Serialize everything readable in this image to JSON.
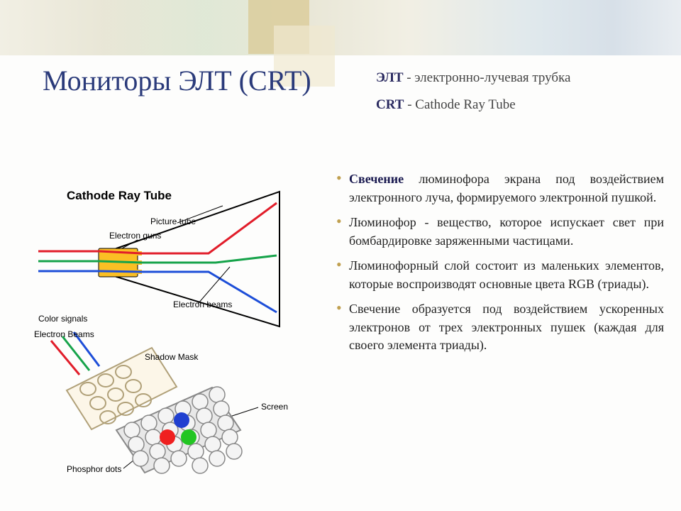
{
  "title": {
    "text": "Мониторы ЭЛТ (CRT)",
    "color": "#2a3a7a",
    "fontsize": 40
  },
  "definitions": {
    "elt_label": "ЭЛТ",
    "elt_text": " - электронно-лучевая трубка",
    "crt_label": "CRT",
    "crt_text": " - Cathode Ray Tube",
    "label_color": "#2a2a60",
    "text_color": "#444"
  },
  "bullets": {
    "items": [
      "<b>Свечение</b> люминофора экрана под воздействием электронного луча, формируемого электронной пушкой.",
      "Люминофор - вещество, которое испускает свет при бомбардировке заряженными частицами.",
      "Люминофорный слой состоит из маленьких элементов, которые воспроизводят основные цвета RGB (триады).",
      "Свечение образуется под воздействием ускоренных электронов от трех электронных пушек (каждая для своего элемента триады)."
    ]
  },
  "diagram": {
    "title": "Cathode Ray Tube",
    "labels": {
      "picture_tube": "Picture tube",
      "electron_guns": "Electron guns",
      "electron_beams_right": "Electron beams",
      "color_signals": "Color signals",
      "electron_beams_left": "Electron Beams",
      "shadow_mask": "Shadow Mask",
      "screen": "Screen",
      "phosphor_dots": "Phosphor dots"
    },
    "colors": {
      "tube_outline": "#000000",
      "gun_body": "#fbbf24",
      "beam_red": "#e11d2a",
      "beam_green": "#16a34a",
      "beam_blue": "#1d4ed8",
      "mask_fill": "#fcf6e8",
      "mask_stroke": "#b0a078",
      "phosphor_fill": "#e8e8e8",
      "phosphor_stroke": "#888888",
      "dot_red": "#ef2020",
      "dot_green": "#22c522",
      "dot_blue": "#2040d0",
      "leader": "#000000"
    },
    "label_fontsize": 12
  }
}
